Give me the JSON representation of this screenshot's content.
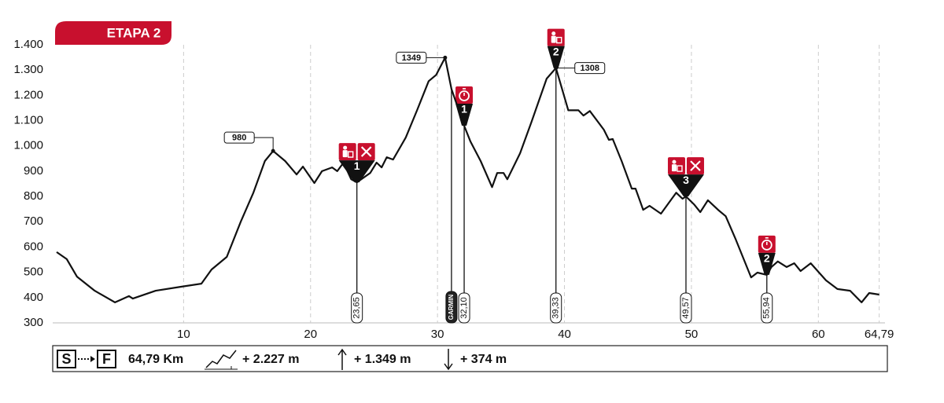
{
  "chart_data": {
    "type": "line",
    "title": "ETAPA 2",
    "color": "#111111",
    "x": [
      0,
      0.8,
      1.6,
      3.0,
      4.6,
      5.7,
      6.0,
      7.8,
      9.8,
      11.4,
      12.2,
      13.4,
      14.5,
      15.5,
      16.4,
      17.05,
      18.0,
      18.9,
      19.4,
      20.3,
      20.9,
      21.7,
      22.1,
      22.6,
      23.2,
      23.65,
      24.7,
      25.2,
      25.6,
      26.0,
      26.5,
      27.5,
      28.4,
      29.3,
      29.9,
      30.6,
      31.1,
      32.1,
      32.6,
      33.4,
      34.3,
      34.7,
      35.2,
      35.5,
      36.5,
      37.4,
      38.6,
      39.33,
      40.3,
      41.1,
      41.5,
      42.0,
      43.1,
      43.5,
      43.8,
      44.5,
      45.3,
      45.6,
      46.2,
      46.7,
      47.6,
      48.5,
      48.8,
      49.3,
      49.57,
      50.2,
      50.7,
      51.3,
      52.1,
      52.7,
      53.5,
      54.7,
      55.2,
      55.94,
      56.3,
      56.8,
      57.5,
      58.1,
      58.6,
      59.4,
      60.6,
      61.5,
      62.5,
      63.4,
      64.0,
      64.79
    ],
    "values": [
      580,
      552,
      483,
      427,
      381,
      406,
      396,
      427,
      443,
      455,
      511,
      561,
      700,
      815,
      940,
      980,
      940,
      887,
      918,
      853,
      900,
      915,
      900,
      934,
      868,
      856,
      893,
      934,
      915,
      955,
      946,
      1033,
      1142,
      1256,
      1281,
      1349,
      1225,
      1080,
      1017,
      940,
      837,
      893,
      893,
      868,
      971,
      1095,
      1266,
      1308,
      1141,
      1141,
      1120,
      1138,
      1064,
      1024,
      1027,
      940,
      831,
      831,
      747,
      763,
      732,
      794,
      815,
      791,
      800,
      769,
      738,
      785,
      747,
      722,
      629,
      480,
      499,
      490,
      521,
      543,
      521,
      536,
      505,
      536,
      468,
      434,
      427,
      381,
      418,
      412
    ],
    "xlim": [
      0,
      65
    ],
    "ylim": [
      300,
      1400
    ],
    "xticks": [
      10,
      20,
      30,
      40,
      50,
      60,
      {
        "value": 64.79,
        "label": "64,79"
      }
    ],
    "yticks": [
      300,
      400,
      500,
      600,
      700,
      800,
      900,
      {
        "value": 1000,
        "label": "1.000"
      },
      {
        "value": 1100,
        "label": "1.100"
      },
      {
        "value": 1200,
        "label": "1.200"
      },
      {
        "value": 1300,
        "label": "1.300"
      },
      {
        "value": 1400,
        "label": "1.400"
      }
    ],
    "grid": true,
    "peaks": [
      {
        "x": 17.05,
        "value": 980
      },
      {
        "x": 30.6,
        "value": 1349
      },
      {
        "x": 39.33,
        "value": 1308
      }
    ],
    "markers": [
      {
        "x": 23.65,
        "label": "23,65",
        "badge": "1"
      },
      {
        "x": 31.1,
        "label": "GARMIN"
      },
      {
        "x": 32.1,
        "label": "32,10",
        "badge": "1"
      },
      {
        "x": 39.33,
        "label": "39,33",
        "badge": "2"
      },
      {
        "x": 49.57,
        "label": "49,57",
        "badge": "3"
      },
      {
        "x": 55.94,
        "label": "55,94",
        "badge": "2"
      }
    ],
    "summary": {
      "start": "S",
      "finish": "F",
      "distance": "64,79 Km",
      "gain": "+ 2.227 m",
      "ascent": "+ 1.349 m",
      "descent": "+ 374 m"
    }
  }
}
